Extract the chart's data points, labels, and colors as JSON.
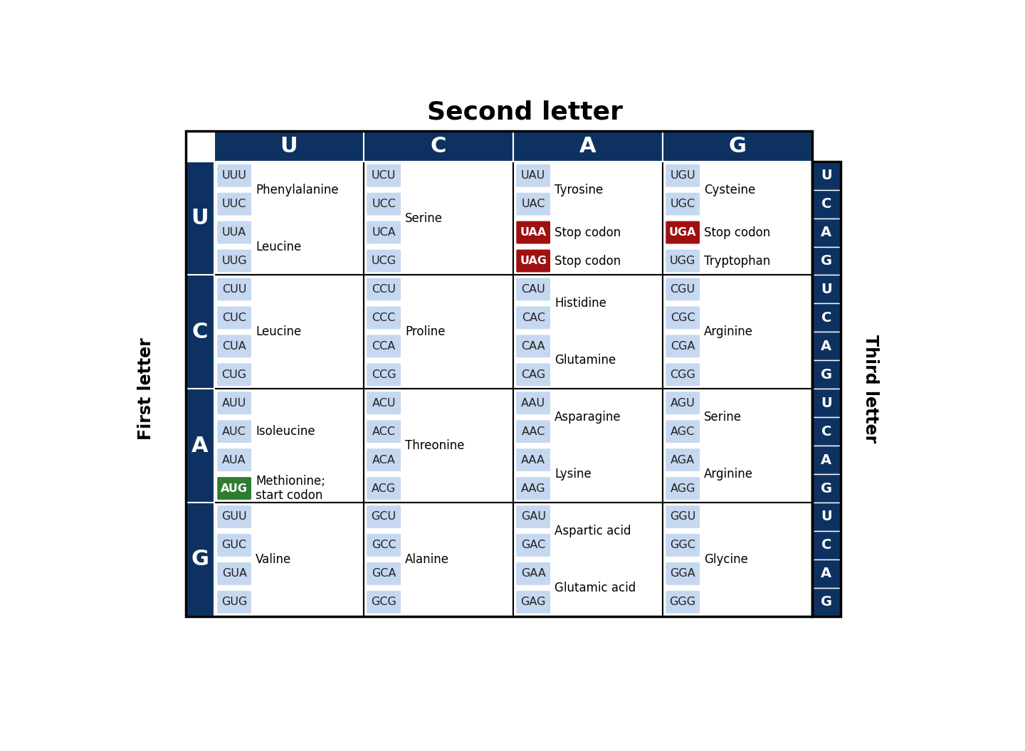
{
  "title": "Second letter",
  "first_letter_label": "First letter",
  "third_letter_label": "Third letter",
  "dark_blue": "#0d3262",
  "light_blue": "#c5d8f0",
  "red_stop": "#a01010",
  "green_start": "#2e7d32",
  "second_letters": [
    "U",
    "C",
    "A",
    "G"
  ],
  "first_letters": [
    "U",
    "C",
    "A",
    "G"
  ],
  "cells": [
    {
      "row": 0,
      "col": 0,
      "codons": [
        "UUU",
        "UUC",
        "UUA",
        "UUG"
      ],
      "codon_colors": [
        "light_blue",
        "light_blue",
        "light_blue",
        "light_blue"
      ],
      "amino_acids": [
        [
          "Phenylalanine",
          0,
          1
        ],
        [
          "Leucine",
          2,
          3
        ]
      ]
    },
    {
      "row": 0,
      "col": 1,
      "codons": [
        "UCU",
        "UCC",
        "UCA",
        "UCG"
      ],
      "codon_colors": [
        "light_blue",
        "light_blue",
        "light_blue",
        "light_blue"
      ],
      "amino_acids": [
        [
          "Serine",
          0,
          3
        ]
      ]
    },
    {
      "row": 0,
      "col": 2,
      "codons": [
        "UAU",
        "UAC",
        "UAA",
        "UAG"
      ],
      "codon_colors": [
        "light_blue",
        "light_blue",
        "red",
        "red"
      ],
      "amino_acids": [
        [
          "Tyrosine",
          0,
          1
        ],
        [
          "Stop codon",
          2,
          2
        ],
        [
          "Stop codon",
          3,
          3
        ]
      ]
    },
    {
      "row": 0,
      "col": 3,
      "codons": [
        "UGU",
        "UGC",
        "UGA",
        "UGG"
      ],
      "codon_colors": [
        "light_blue",
        "light_blue",
        "red",
        "light_blue"
      ],
      "amino_acids": [
        [
          "Cysteine",
          0,
          1
        ],
        [
          "Stop codon",
          2,
          2
        ],
        [
          "Tryptophan",
          3,
          3
        ]
      ]
    },
    {
      "row": 1,
      "col": 0,
      "codons": [
        "CUU",
        "CUC",
        "CUA",
        "CUG"
      ],
      "codon_colors": [
        "light_blue",
        "light_blue",
        "light_blue",
        "light_blue"
      ],
      "amino_acids": [
        [
          "Leucine",
          0,
          3
        ]
      ]
    },
    {
      "row": 1,
      "col": 1,
      "codons": [
        "CCU",
        "CCC",
        "CCA",
        "CCG"
      ],
      "codon_colors": [
        "light_blue",
        "light_blue",
        "light_blue",
        "light_blue"
      ],
      "amino_acids": [
        [
          "Proline",
          0,
          3
        ]
      ]
    },
    {
      "row": 1,
      "col": 2,
      "codons": [
        "CAU",
        "CAC",
        "CAA",
        "CAG"
      ],
      "codon_colors": [
        "light_blue",
        "light_blue",
        "light_blue",
        "light_blue"
      ],
      "amino_acids": [
        [
          "Histidine",
          0,
          1
        ],
        [
          "Glutamine",
          2,
          3
        ]
      ]
    },
    {
      "row": 1,
      "col": 3,
      "codons": [
        "CGU",
        "CGC",
        "CGA",
        "CGG"
      ],
      "codon_colors": [
        "light_blue",
        "light_blue",
        "light_blue",
        "light_blue"
      ],
      "amino_acids": [
        [
          "Arginine",
          0,
          3
        ]
      ]
    },
    {
      "row": 2,
      "col": 0,
      "codons": [
        "AUU",
        "AUC",
        "AUA",
        "AUG"
      ],
      "codon_colors": [
        "light_blue",
        "light_blue",
        "light_blue",
        "green"
      ],
      "amino_acids": [
        [
          "Isoleucine",
          0,
          2
        ],
        [
          "Methionine;\nstart codon",
          3,
          3
        ]
      ]
    },
    {
      "row": 2,
      "col": 1,
      "codons": [
        "ACU",
        "ACC",
        "ACA",
        "ACG"
      ],
      "codon_colors": [
        "light_blue",
        "light_blue",
        "light_blue",
        "light_blue"
      ],
      "amino_acids": [
        [
          "Threonine",
          0,
          3
        ]
      ]
    },
    {
      "row": 2,
      "col": 2,
      "codons": [
        "AAU",
        "AAC",
        "AAA",
        "AAG"
      ],
      "codon_colors": [
        "light_blue",
        "light_blue",
        "light_blue",
        "light_blue"
      ],
      "amino_acids": [
        [
          "Asparagine",
          0,
          1
        ],
        [
          "Lysine",
          2,
          3
        ]
      ]
    },
    {
      "row": 2,
      "col": 3,
      "codons": [
        "AGU",
        "AGC",
        "AGA",
        "AGG"
      ],
      "codon_colors": [
        "light_blue",
        "light_blue",
        "light_blue",
        "light_blue"
      ],
      "amino_acids": [
        [
          "Serine",
          0,
          1
        ],
        [
          "Arginine",
          2,
          3
        ]
      ]
    },
    {
      "row": 3,
      "col": 0,
      "codons": [
        "GUU",
        "GUC",
        "GUA",
        "GUG"
      ],
      "codon_colors": [
        "light_blue",
        "light_blue",
        "light_blue",
        "light_blue"
      ],
      "amino_acids": [
        [
          "Valine",
          0,
          3
        ]
      ]
    },
    {
      "row": 3,
      "col": 1,
      "codons": [
        "GCU",
        "GCC",
        "GCA",
        "GCG"
      ],
      "codon_colors": [
        "light_blue",
        "light_blue",
        "light_blue",
        "light_blue"
      ],
      "amino_acids": [
        [
          "Alanine",
          0,
          3
        ]
      ]
    },
    {
      "row": 3,
      "col": 2,
      "codons": [
        "GAU",
        "GAC",
        "GAA",
        "GAG"
      ],
      "codon_colors": [
        "light_blue",
        "light_blue",
        "light_blue",
        "light_blue"
      ],
      "amino_acids": [
        [
          "Aspartic acid",
          0,
          1
        ],
        [
          "Glutamic acid",
          2,
          3
        ]
      ]
    },
    {
      "row": 3,
      "col": 3,
      "codons": [
        "GGU",
        "GGC",
        "GGA",
        "GGG"
      ],
      "codon_colors": [
        "light_blue",
        "light_blue",
        "light_blue",
        "light_blue"
      ],
      "amino_acids": [
        [
          "Glycine",
          0,
          3
        ]
      ]
    }
  ]
}
